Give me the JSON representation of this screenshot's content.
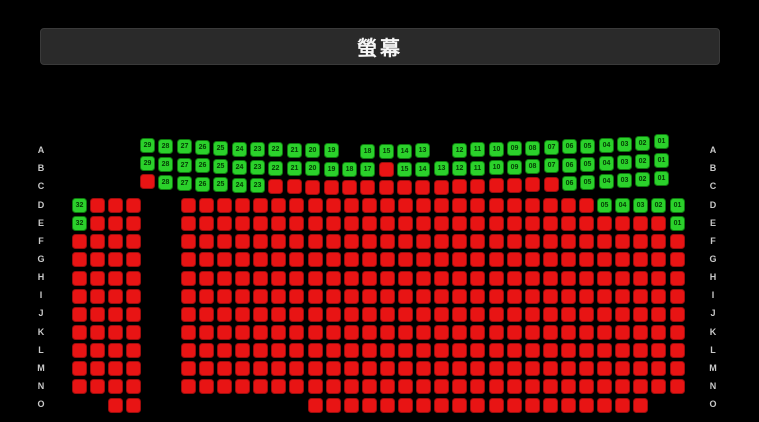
{
  "screen": {
    "label": "螢幕"
  },
  "colors": {
    "background": "#000000",
    "screen_bg": "#2a2a2a",
    "screen_text": "#f5f5f5",
    "available": "#2bd12b",
    "available_border": "#0e7a0e",
    "available_text": "#043f04",
    "taken": "#e81414",
    "taken_border": "#9c0d0d",
    "row_label": "#c8c8c8"
  },
  "row_labels": [
    "A",
    "B",
    "C",
    "D",
    "E",
    "F",
    "G",
    "H",
    "I",
    "J",
    "K",
    "L",
    "M",
    "N",
    "O"
  ],
  "rows": [
    {
      "label": "A",
      "section": "front",
      "green": [
        [
          0,
          "29"
        ],
        [
          1,
          "28"
        ],
        [
          2,
          "27"
        ],
        [
          3,
          "26"
        ],
        [
          4,
          "25"
        ],
        [
          5,
          "24"
        ],
        [
          6,
          "23"
        ],
        [
          7,
          "22"
        ],
        [
          8,
          "21"
        ],
        [
          9,
          "20"
        ],
        [
          10,
          "19"
        ],
        [
          12,
          "18"
        ],
        [
          13,
          "15"
        ],
        [
          14,
          "14"
        ],
        [
          15,
          "13"
        ],
        [
          17,
          "12"
        ],
        [
          18,
          "11"
        ],
        [
          19,
          "10"
        ],
        [
          20,
          "09"
        ],
        [
          21,
          "08"
        ],
        [
          22,
          "07"
        ],
        [
          23,
          "06"
        ],
        [
          24,
          "05"
        ],
        [
          25,
          "04"
        ],
        [
          26,
          "03"
        ],
        [
          27,
          "02"
        ],
        [
          28,
          "01"
        ]
      ],
      "red": []
    },
    {
      "label": "B",
      "section": "front",
      "green": [
        [
          0,
          "29"
        ],
        [
          1,
          "28"
        ],
        [
          2,
          "27"
        ],
        [
          3,
          "26"
        ],
        [
          4,
          "25"
        ],
        [
          5,
          "24"
        ],
        [
          6,
          "23"
        ],
        [
          7,
          "22"
        ],
        [
          8,
          "21"
        ],
        [
          9,
          "20"
        ],
        [
          10,
          "19"
        ],
        [
          11,
          "18"
        ],
        [
          12,
          "17"
        ],
        [
          14,
          "15"
        ],
        [
          15,
          "14"
        ],
        [
          16,
          "13"
        ],
        [
          17,
          "12"
        ],
        [
          18,
          "11"
        ],
        [
          19,
          "10"
        ],
        [
          20,
          "09"
        ],
        [
          21,
          "08"
        ],
        [
          22,
          "07"
        ],
        [
          23,
          "06"
        ],
        [
          24,
          "05"
        ],
        [
          25,
          "04"
        ],
        [
          26,
          "03"
        ],
        [
          27,
          "02"
        ],
        [
          28,
          "01"
        ]
      ],
      "red": [
        [
          13,
          13
        ]
      ]
    },
    {
      "label": "C",
      "section": "front",
      "green": [
        [
          1,
          "28"
        ],
        [
          2,
          "27"
        ],
        [
          3,
          "26"
        ],
        [
          4,
          "25"
        ],
        [
          5,
          "24"
        ],
        [
          6,
          "23"
        ],
        [
          23,
          "06"
        ],
        [
          24,
          "05"
        ],
        [
          25,
          "04"
        ],
        [
          26,
          "03"
        ],
        [
          27,
          "02"
        ],
        [
          28,
          "01"
        ]
      ],
      "red": [
        [
          0,
          0
        ],
        [
          7,
          22
        ]
      ]
    },
    {
      "label": "D",
      "section": "main",
      "green": [
        [
          0,
          "32"
        ],
        [
          27,
          "05"
        ],
        [
          28,
          "04"
        ],
        [
          29,
          "03"
        ],
        [
          30,
          "02"
        ],
        [
          31,
          "01"
        ]
      ],
      "red": [
        [
          1,
          26
        ]
      ]
    },
    {
      "label": "E",
      "section": "main",
      "green": [
        [
          0,
          "32"
        ],
        [
          31,
          "01"
        ]
      ],
      "red": [
        [
          1,
          30
        ]
      ]
    },
    {
      "label": "F",
      "section": "main",
      "green": [],
      "red": [
        [
          0,
          31
        ]
      ]
    },
    {
      "label": "G",
      "section": "main",
      "green": [],
      "red": [
        [
          0,
          31
        ]
      ]
    },
    {
      "label": "H",
      "section": "main",
      "green": [],
      "red": [
        [
          0,
          31
        ]
      ]
    },
    {
      "label": "I",
      "section": "main",
      "green": [],
      "red": [
        [
          0,
          31
        ]
      ]
    },
    {
      "label": "J",
      "section": "main",
      "green": [],
      "red": [
        [
          0,
          31
        ]
      ]
    },
    {
      "label": "K",
      "section": "main",
      "green": [],
      "red": [
        [
          0,
          31
        ]
      ]
    },
    {
      "label": "L",
      "section": "main",
      "green": [],
      "red": [
        [
          0,
          31
        ]
      ]
    },
    {
      "label": "M",
      "section": "main",
      "green": [],
      "red": [
        [
          0,
          31
        ]
      ]
    },
    {
      "label": "N",
      "section": "main",
      "green": [],
      "red": [
        [
          0,
          31
        ]
      ]
    },
    {
      "label": "O",
      "section": "main",
      "green": [],
      "red": [
        [
          2,
          3
        ],
        [
          11,
          29
        ]
      ]
    }
  ]
}
